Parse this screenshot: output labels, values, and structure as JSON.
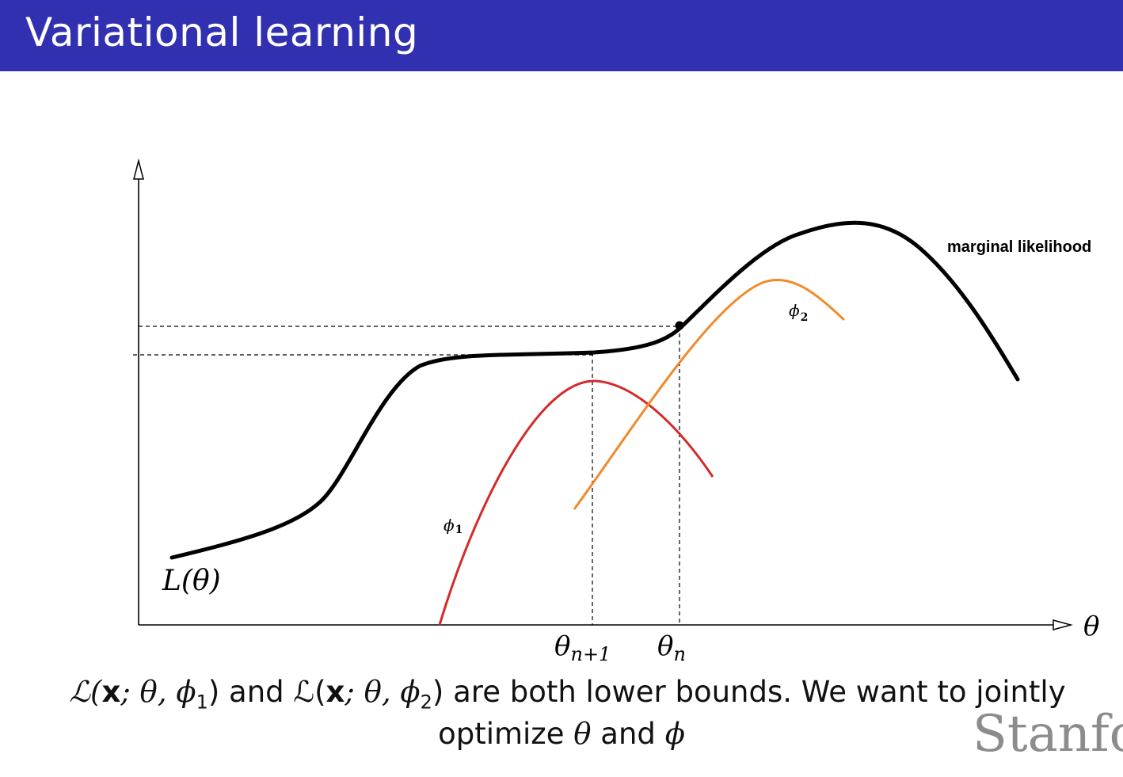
{
  "slide": {
    "title": "Variational learning"
  },
  "diagram": {
    "curve_label": "marginal likelihood",
    "y_label": "L(θ)",
    "x_axis_symbol": "θ",
    "phi1_label": "ϕ",
    "phi1_sub": "1",
    "phi2_label": "ϕ",
    "phi2_sub": "2",
    "theta_n1": "θ",
    "theta_n1_sub": "n+1",
    "theta_n": "θ",
    "theta_n_sub": "n",
    "colors": {
      "marginal": "#000000",
      "phi1": "#d42a2a",
      "phi2": "#f08a2a",
      "title_bar": "#3030b0"
    }
  },
  "caption": {
    "line1_part1": "ℒ(",
    "line1_x1": "x",
    "line1_part2": "; θ, ϕ",
    "line1_sub1": "1",
    "line1_part3": ") and ℒ(",
    "line1_x2": "x",
    "line1_part4": "; θ, ϕ",
    "line1_sub2": "2",
    "line1_part5": ") are both lower bounds.  We want to jointly",
    "line2_part1": "optimize ",
    "line2_theta": "θ",
    "line2_part2": " and ",
    "line2_phi": "ϕ"
  },
  "watermark": "Stanfo"
}
